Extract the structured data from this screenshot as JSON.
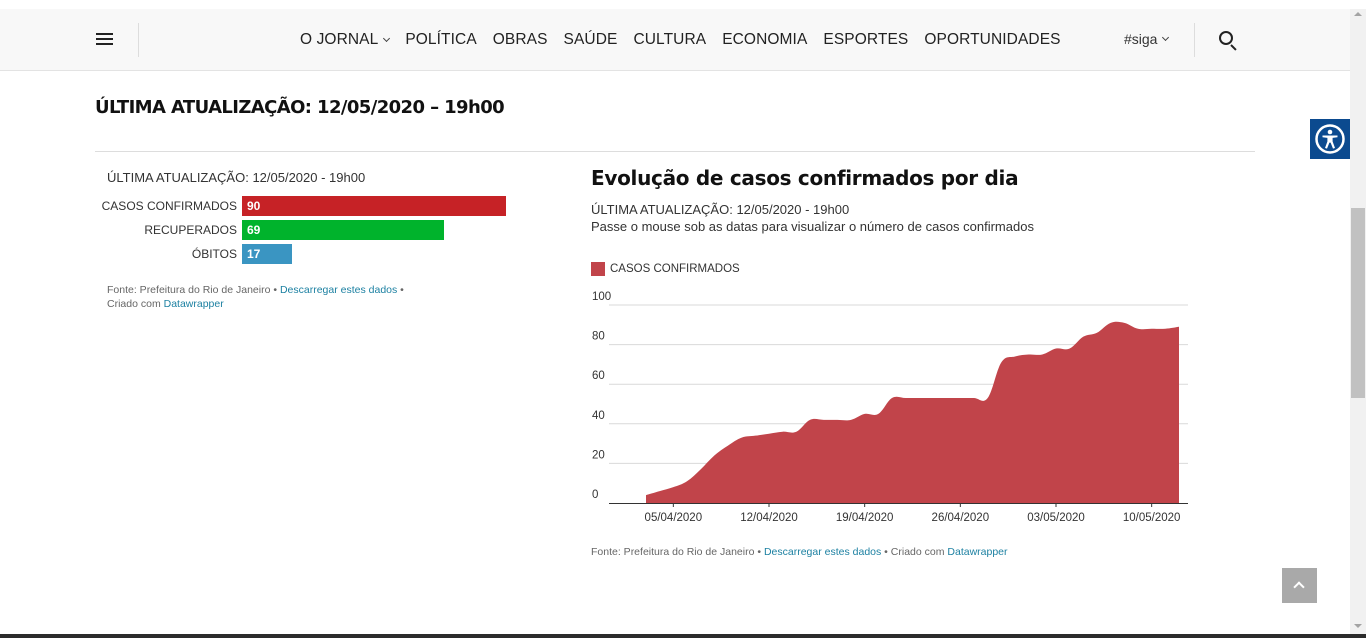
{
  "header": {
    "nav": [
      "O JORNAL",
      "POLÍTICA",
      "OBRAS",
      "SAÚDE",
      "CULTURA",
      "ECONOMIA",
      "ESPORTES",
      "OPORTUNIDADES"
    ],
    "siga_label": "#siga"
  },
  "headline": "ÚLTIMA ATUALIZAÇÃO: 12/05/2020 – 19h00",
  "bar_chart": {
    "updated": "ÚLTIMA ATUALIZAÇÃO: 12/05/2020 - 19h00",
    "source_prefix": "Fonte: Prefeitura do Rio de Janeiro •",
    "source_link": "Descarregar estes dados",
    "source_sep": " •",
    "created_prefix": "Criado com",
    "created_link": "Datawrapper"
  },
  "area_chart": {
    "subtitle_updated": "ÚLTIMA ATUALIZAÇÃO: 12/05/2020 - 19h00",
    "subtitle_hint": "Passe o mouse sob as datas para visualizar o número de casos confirmados",
    "source_prefix": "Fonte: Prefeitura do Rio de Janeiro •",
    "source_link": "Descarregar estes dados",
    "created_prefix": " • Criado com",
    "created_link": "Datawrapper"
  },
  "colors": {
    "confirmed": "#c62226",
    "recovered": "#00b32c",
    "deaths": "#3a95c2",
    "area": "#c1444a",
    "link": "#1d81a2",
    "accessibility": "#0b4a8f"
  },
  "chart_data": [
    {
      "type": "bar",
      "title": "",
      "categories": [
        "CASOS CONFIRMADOS",
        "RECUPERADOS",
        "ÓBITOS"
      ],
      "values": [
        90,
        69,
        17
      ],
      "colors": [
        "#c62226",
        "#00b32c",
        "#3a95c2"
      ]
    },
    {
      "type": "area",
      "title": "Evolução de casos confirmados por dia",
      "x_tick_labels": [
        "05/04/2020",
        "12/04/2020",
        "19/04/2020",
        "26/04/2020",
        "03/05/2020",
        "10/05/2020"
      ],
      "x": [
        "2020-04-03",
        "2020-04-04",
        "2020-04-05",
        "2020-04-06",
        "2020-04-07",
        "2020-04-08",
        "2020-04-09",
        "2020-04-10",
        "2020-04-11",
        "2020-04-12",
        "2020-04-13",
        "2020-04-14",
        "2020-04-15",
        "2020-04-16",
        "2020-04-17",
        "2020-04-18",
        "2020-04-19",
        "2020-04-20",
        "2020-04-21",
        "2020-04-22",
        "2020-04-23",
        "2020-04-24",
        "2020-04-25",
        "2020-04-26",
        "2020-04-27",
        "2020-04-28",
        "2020-04-29",
        "2020-04-30",
        "2020-05-01",
        "2020-05-02",
        "2020-05-03",
        "2020-05-04",
        "2020-05-05",
        "2020-05-06",
        "2020-05-07",
        "2020-05-08",
        "2020-05-09",
        "2020-05-10",
        "2020-05-11",
        "2020-05-12"
      ],
      "series": [
        {
          "name": "CASOS CONFIRMADOS",
          "values": [
            4,
            6,
            8,
            11,
            17,
            24,
            29,
            33,
            34,
            35,
            36,
            36,
            42,
            42,
            42,
            42,
            45,
            45,
            53,
            53,
            53,
            53,
            53,
            53,
            53,
            53,
            71,
            74,
            75,
            75,
            78,
            78,
            84,
            86,
            91,
            91,
            88,
            88,
            88,
            89
          ]
        }
      ],
      "ylim": [
        0,
        100
      ],
      "y_ticks": [
        0,
        20,
        40,
        60,
        80,
        100
      ],
      "grid": true,
      "legend": "top-left"
    }
  ]
}
